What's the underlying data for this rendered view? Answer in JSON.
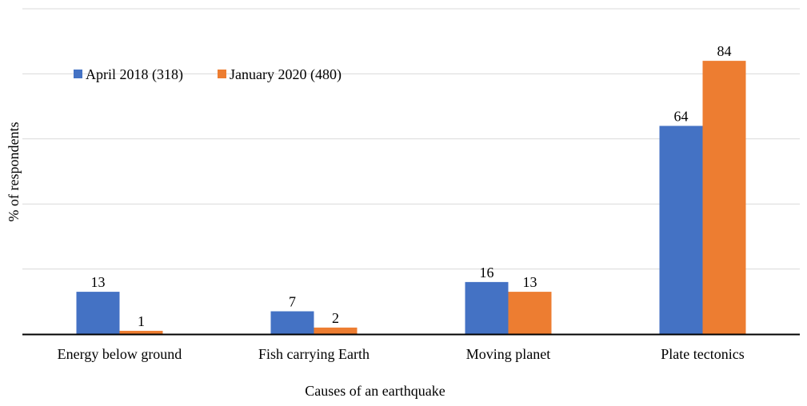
{
  "chart_data": {
    "type": "bar",
    "categories": [
      "Energy below ground",
      "Fish carrying Earth",
      "Moving planet",
      "Plate tectonics"
    ],
    "series": [
      {
        "name": "April 2018 (318)",
        "values": [
          13,
          7,
          16,
          64
        ],
        "color": "#4472C4"
      },
      {
        "name": "January 2020 (480)",
        "values": [
          1,
          2,
          13,
          84
        ],
        "color": "#ED7D31"
      }
    ],
    "xlabel": "Causes of an earthquake",
    "ylabel": "% of  respondents",
    "ylim": [
      0,
      100
    ],
    "grid": true,
    "legend_position": "top-left",
    "data_labels": true,
    "gridline_color": "#D9D9D9",
    "axis_color": "#000000"
  }
}
